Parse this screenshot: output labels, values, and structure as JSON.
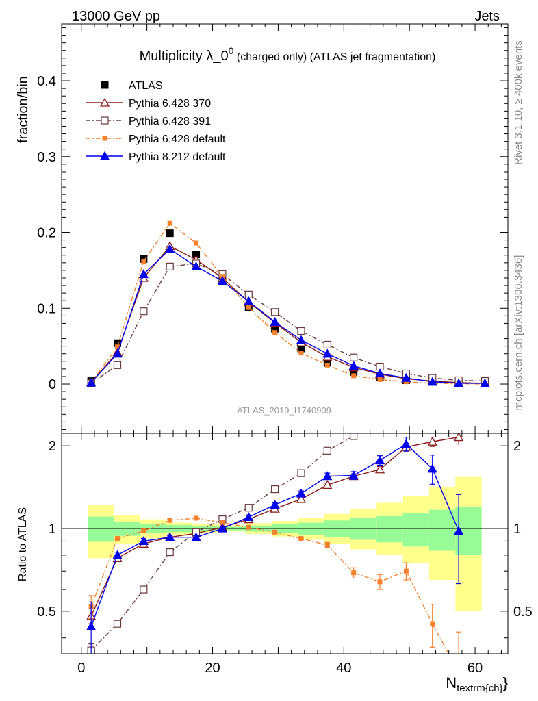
{
  "header": {
    "left": "13000 GeV pp",
    "right": "Jets"
  },
  "title": {
    "main": "Multiplicity λ_0",
    "superscript": "0",
    "suffix": " (charged only) (ATLAS jet fragmentation)"
  },
  "side_labels": {
    "rivet": "Rivet 3.1.10, ≥ 400k events",
    "mcplots": "mcplots.cern.ch [arXiv:1306.3436]"
  },
  "watermark": "ATLAS_2019_I1740909",
  "chart_data": {
    "type": "scatter",
    "xlabel": "N",
    "xlabel_sub": "textrm{ch}",
    "xlabel_close": "}",
    "xlim": [
      -3,
      65
    ],
    "upper": {
      "ylabel": "fraction/bin",
      "ylim": [
        -0.065,
        0.475
      ],
      "yticks": [
        0,
        0.1,
        0.2,
        0.3,
        0.4
      ],
      "ytick_labels": [
        "0",
        "0.1",
        "0.2",
        "0.3",
        "0.4"
      ]
    },
    "lower": {
      "ylabel": "Ratio to ATLAS",
      "ylim": [
        0.35,
        2.22
      ],
      "yticks": [
        0.5,
        1,
        2
      ],
      "ytick_labels": [
        "0.5",
        "1",
        "2"
      ]
    },
    "xticks": [
      0,
      20,
      40,
      60
    ],
    "xtick_labels": [
      "0",
      "20",
      "40",
      "60"
    ],
    "x": [
      1.5,
      5.5,
      9.5,
      13.5,
      17.5,
      21.5,
      25.5,
      29.5,
      33.5,
      37.5,
      41.5,
      45.5,
      49.5,
      53.5,
      57.5,
      61.5
    ],
    "data": {
      "name": "ATLAS",
      "color": "#000000",
      "values": [
        0.004,
        0.054,
        0.165,
        0.199,
        0.171,
        0.139,
        0.101,
        0.073,
        0.047,
        0.028,
        0.016,
        0.009,
        0.005,
        0.003,
        0.002,
        0.001
      ]
    },
    "band": {
      "edges": [
        1,
        5,
        9,
        13,
        17,
        21,
        25,
        29,
        33,
        37,
        41,
        45,
        49,
        53,
        57,
        61
      ],
      "inner_color": "#98fb98",
      "outer_color": "#ffff8c",
      "green_lo": [
        0.895,
        0.94,
        0.96,
        0.97,
        0.98,
        0.985,
        0.975,
        0.965,
        0.95,
        0.93,
        0.91,
        0.89,
        0.86,
        0.83,
        0.8
      ],
      "green_hi": [
        1.105,
        1.06,
        1.04,
        1.03,
        1.02,
        1.015,
        1.025,
        1.035,
        1.05,
        1.07,
        1.09,
        1.11,
        1.14,
        1.17,
        1.2
      ],
      "yellow_lo": [
        0.78,
        0.88,
        0.92,
        0.95,
        0.965,
        0.975,
        0.955,
        0.935,
        0.91,
        0.88,
        0.84,
        0.8,
        0.75,
        0.65,
        0.5
      ],
      "yellow_hi": [
        1.22,
        1.12,
        1.08,
        1.05,
        1.035,
        1.025,
        1.045,
        1.065,
        1.09,
        1.13,
        1.18,
        1.24,
        1.31,
        1.42,
        1.54
      ]
    },
    "series": [
      {
        "name": "Pythia 6.428 370",
        "color": "#8b1a1a",
        "marker": "triangle-open",
        "dash": "",
        "values": [
          0.002,
          0.042,
          0.14,
          0.182,
          0.164,
          0.14,
          0.108,
          0.081,
          0.055,
          0.036,
          0.022,
          0.013,
          0.007,
          0.004,
          0.002,
          0.001
        ],
        "ratio": [
          0.48,
          0.78,
          0.88,
          0.93,
          0.96,
          1.01,
          1.08,
          1.18,
          1.28,
          1.44,
          1.55,
          1.64,
          1.98,
          2.07,
          2.15,
          null
        ],
        "ratio_err": [
          0.03,
          0.01,
          0.01,
          0.01,
          0.01,
          0.01,
          0.01,
          0.01,
          0.02,
          0.02,
          0.03,
          0.04,
          0.06,
          0.08,
          0.12,
          null
        ]
      },
      {
        "name": "Pythia 6.428 391",
        "color": "#6b3a3a",
        "marker": "square-open",
        "dash": "7,3,2,3",
        "values": [
          0.001,
          0.025,
          0.096,
          0.155,
          0.159,
          0.145,
          0.118,
          0.095,
          0.07,
          0.052,
          0.035,
          0.023,
          0.014,
          0.008,
          0.005,
          0.004
        ],
        "ratio": [
          0.36,
          0.45,
          0.6,
          0.82,
          0.97,
          1.08,
          1.19,
          1.39,
          1.59,
          1.92,
          2.17,
          null,
          null,
          null,
          null,
          null
        ],
        "ratio_err": [
          0.02,
          0.01,
          0.01,
          0.01,
          0.01,
          0.01,
          0.01,
          0.01,
          0.02,
          0.02,
          0.03,
          null,
          null,
          null,
          null,
          null
        ]
      },
      {
        "name": "Pythia 6.428 default",
        "color": "#f57f2a",
        "marker": "square-filled",
        "dash": "7,3,2,3",
        "values": [
          0.002,
          0.049,
          0.162,
          0.212,
          0.186,
          0.142,
          0.101,
          0.068,
          0.041,
          0.025,
          0.011,
          0.006,
          0.003,
          0.001,
          0.0005,
          0.0
        ],
        "ratio": [
          0.52,
          0.92,
          0.98,
          1.07,
          1.09,
          1.05,
          1.01,
          0.97,
          0.92,
          0.87,
          0.69,
          0.64,
          0.7,
          0.45,
          0.3,
          null
        ],
        "ratio_err": [
          0.05,
          0.01,
          0.01,
          0.01,
          0.01,
          0.01,
          0.01,
          0.01,
          0.01,
          0.02,
          0.03,
          0.04,
          0.05,
          0.08,
          0.12,
          null
        ]
      },
      {
        "name": "Pythia 8.212 default",
        "color": "#0000ee",
        "marker": "triangle-filled",
        "dash": "",
        "values": [
          0.002,
          0.04,
          0.145,
          0.178,
          0.155,
          0.136,
          0.109,
          0.082,
          0.058,
          0.04,
          0.024,
          0.014,
          0.008,
          0.003,
          0.001,
          0.001
        ],
        "ratio": [
          0.44,
          0.8,
          0.9,
          0.93,
          0.93,
          1.0,
          1.1,
          1.22,
          1.34,
          1.55,
          1.56,
          1.77,
          2.03,
          1.65,
          0.98,
          null
        ],
        "ratio_err": [
          0.1,
          0.02,
          0.02,
          0.01,
          0.01,
          0.01,
          0.02,
          0.02,
          0.03,
          0.04,
          0.05,
          0.07,
          0.12,
          0.2,
          0.35,
          null
        ]
      }
    ]
  }
}
